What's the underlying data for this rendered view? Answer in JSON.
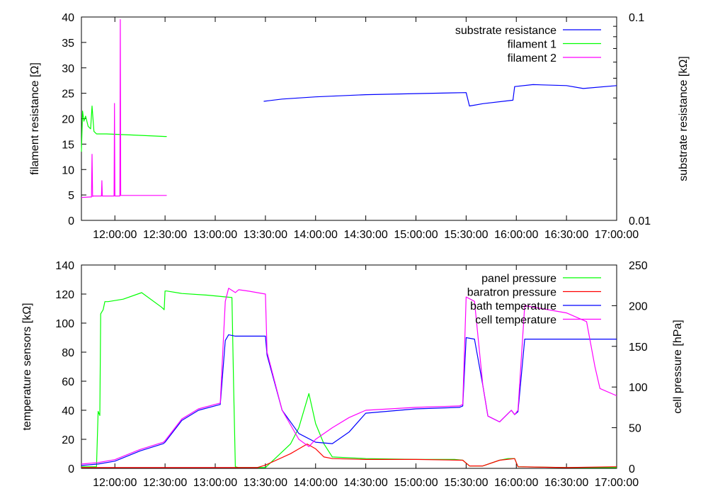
{
  "chart_data": [
    {
      "type": "line",
      "x_tick_labels": [
        "12:00:00",
        "12:30:00",
        "13:00:00",
        "13:30:00",
        "14:00:00",
        "14:30:00",
        "15:00:00",
        "15:30:00",
        "16:00:00",
        "16:30:00",
        "17:00:00"
      ],
      "xlim": [
        "11:40:00",
        "17:00:00"
      ],
      "ylabel": "filament resistance [Ω]",
      "ylim": [
        0,
        40
      ],
      "y_ticks": [
        0,
        5,
        10,
        15,
        20,
        25,
        30,
        35,
        40
      ],
      "y2label": "substrate resistance [kΩ]",
      "y2lim": [
        0.01,
        0.1
      ],
      "y2_scale": "log",
      "y2_tick_labels": [
        "0.01",
        "0.1"
      ],
      "legend_position": "top-right",
      "series": [
        {
          "name": "substrate resistance",
          "color": "#0000ff",
          "axis": "y2",
          "x": [
            "13:29:00",
            "13:40:00",
            "14:00:00",
            "14:30:00",
            "15:00:00",
            "15:30:00",
            "15:32:00",
            "15:40:00",
            "15:58:00",
            "15:59:00",
            "16:10:00",
            "16:30:00",
            "16:40:00",
            "17:00:00"
          ],
          "y": [
            0.0385,
            0.0395,
            0.0405,
            0.0415,
            0.042,
            0.0425,
            0.0365,
            0.0375,
            0.039,
            0.0455,
            0.0465,
            0.046,
            0.0445,
            0.046
          ]
        },
        {
          "name": "filament 1",
          "color": "#00ff00",
          "axis": "y",
          "x": [
            "11:40:00",
            "11:40:40",
            "11:41:30",
            "11:42:30",
            "11:44:00",
            "11:45:30",
            "11:46:20",
            "11:47:30",
            "11:49:00",
            "11:55:00",
            "12:10:00",
            "12:30:00",
            "12:31:00"
          ],
          "y": [
            13.5,
            21.5,
            19.5,
            20.5,
            18.5,
            18.0,
            22.5,
            17.5,
            17.0,
            17.0,
            16.8,
            16.5,
            16.5
          ]
        },
        {
          "name": "filament 2",
          "color": "#ff00ff",
          "axis": "y",
          "x": [
            "11:40:00",
            "11:45:00",
            "11:46:00",
            "11:46:20",
            "11:46:40",
            "11:47:00",
            "11:52:00",
            "11:52:15",
            "11:52:30",
            "11:59:30",
            "11:59:45",
            "12:00:00",
            "12:03:00",
            "12:03:15",
            "12:03:30",
            "12:31:00"
          ],
          "y": [
            4.5,
            4.6,
            4.6,
            13.0,
            4.7,
            4.8,
            4.8,
            7.8,
            4.8,
            4.8,
            23.0,
            4.8,
            4.8,
            39.5,
            4.9,
            4.9
          ]
        }
      ]
    },
    {
      "type": "line",
      "x_tick_labels": [
        "12:00:00",
        "12:30:00",
        "13:00:00",
        "13:30:00",
        "14:00:00",
        "14:30:00",
        "15:00:00",
        "15:30:00",
        "16:00:00",
        "16:30:00",
        "17:00:00"
      ],
      "xlim": [
        "11:40:00",
        "17:00:00"
      ],
      "ylabel": "temperature sensors [kΩ]",
      "ylim": [
        0,
        140
      ],
      "y_ticks": [
        0,
        20,
        40,
        60,
        80,
        100,
        120,
        140
      ],
      "y2label": "cell pressure [hPa]",
      "y2lim": [
        0,
        250
      ],
      "y2_ticks": [
        0,
        50,
        100,
        150,
        200,
        250
      ],
      "legend_position": "top-right",
      "series": [
        {
          "name": "panel pressure",
          "color": "#00ff00",
          "axis": "y2",
          "x": [
            "11:40:00",
            "11:46:00",
            "11:47:00",
            "11:49:00",
            "11:50:00",
            "11:51:00",
            "11:51:30",
            "11:53:00",
            "11:54:00",
            "11:56:00",
            "12:05:00",
            "12:16:00",
            "12:28:00",
            "12:29:30",
            "12:30:00",
            "12:31:00",
            "12:40:00",
            "12:55:00",
            "13:10:00",
            "13:11:00",
            "13:12:00",
            "13:14:00",
            "13:20:00",
            "13:30:00",
            "13:45:00",
            "13:50:00",
            "13:56:00",
            "14:00:00",
            "14:05:00",
            "14:10:00",
            "14:30:00",
            "15:00:00",
            "15:23:00",
            "15:28:00",
            "15:32:00",
            "15:40:00",
            "15:50:00",
            "15:55:00",
            "15:59:00",
            "16:01:00",
            "16:30:00",
            "17:00:00"
          ],
          "y": [
            2,
            2,
            2,
            2,
            70,
            65,
            190,
            195,
            205,
            205,
            208,
            216,
            198,
            195,
            218,
            218,
            215,
            213,
            210,
            100,
            2,
            1,
            1,
            1,
            30,
            50,
            92,
            55,
            30,
            14,
            12,
            11,
            11,
            10,
            3,
            3,
            10,
            12,
            12,
            2,
            1,
            1
          ]
        },
        {
          "name": "baratron pressure",
          "color": "#ff0000",
          "axis": "y2",
          "x": [
            "11:40:00",
            "13:10:00",
            "13:12:00",
            "13:14:00",
            "13:25:00",
            "13:30:00",
            "13:45:00",
            "13:55:00",
            "14:00:00",
            "14:05:00",
            "14:10:00",
            "14:30:00",
            "15:00:00",
            "15:28:00",
            "15:32:00",
            "15:40:00",
            "15:50:00",
            "15:59:00",
            "16:01:00",
            "16:30:00",
            "17:00:00"
          ],
          "y": [
            1,
            1,
            1,
            1,
            1,
            4,
            18,
            30,
            24,
            14,
            12,
            11,
            11,
            10,
            3,
            3,
            10,
            12,
            2,
            1,
            2
          ]
        },
        {
          "name": "bath temperature",
          "color": "#0000ff",
          "axis": "y",
          "x": [
            "11:40:00",
            "11:50:00",
            "12:00:00",
            "12:15:00",
            "12:29:00",
            "12:30:00",
            "12:40:00",
            "12:50:00",
            "13:03:00",
            "13:06:00",
            "13:08:00",
            "13:12:00",
            "13:20:00",
            "13:30:00",
            "13:31:00",
            "13:40:00",
            "13:50:00",
            "14:00:00",
            "14:10:00",
            "14:20:00",
            "14:30:00",
            "15:00:00",
            "15:26:00",
            "15:28:00",
            "15:30:00",
            "15:35:00",
            "15:40:00",
            "15:43:00",
            "15:50:00",
            "15:57:00",
            "15:59:00",
            "16:01:00",
            "16:05:00",
            "16:30:00",
            "17:00:00"
          ],
          "y": [
            2,
            3,
            5,
            12,
            17,
            18,
            33,
            40,
            44,
            88,
            92,
            91,
            91,
            91,
            78,
            40,
            24,
            18,
            17,
            25,
            38,
            41,
            42,
            43,
            90,
            89,
            57,
            36,
            32,
            40,
            37,
            39,
            89,
            89,
            89
          ]
        },
        {
          "name": "cell temperature",
          "color": "#ff00ff",
          "axis": "y",
          "x": [
            "11:40:00",
            "11:50:00",
            "12:00:00",
            "12:15:00",
            "12:29:00",
            "12:30:00",
            "12:40:00",
            "12:50:00",
            "13:03:00",
            "13:06:00",
            "13:08:00",
            "13:12:00",
            "13:14:00",
            "13:20:00",
            "13:30:00",
            "13:31:00",
            "13:40:00",
            "13:50:00",
            "13:56:00",
            "14:00:00",
            "14:10:00",
            "14:20:00",
            "14:30:00",
            "15:00:00",
            "15:26:00",
            "15:28:00",
            "15:30:00",
            "15:35:00",
            "15:40:00",
            "15:43:00",
            "15:50:00",
            "15:57:00",
            "15:59:00",
            "16:01:00",
            "16:05:00",
            "16:30:00",
            "16:42:00",
            "16:47:00",
            "16:50:00",
            "17:00:00"
          ],
          "y": [
            3,
            4,
            6,
            13,
            18,
            19,
            34,
            41,
            45,
            115,
            124,
            121,
            123,
            122,
            120,
            80,
            40,
            20,
            15,
            20,
            28,
            35,
            40,
            42,
            43,
            44,
            118,
            115,
            57,
            36,
            32,
            40,
            37,
            40,
            112,
            107,
            101,
            70,
            55,
            50
          ]
        }
      ]
    }
  ]
}
